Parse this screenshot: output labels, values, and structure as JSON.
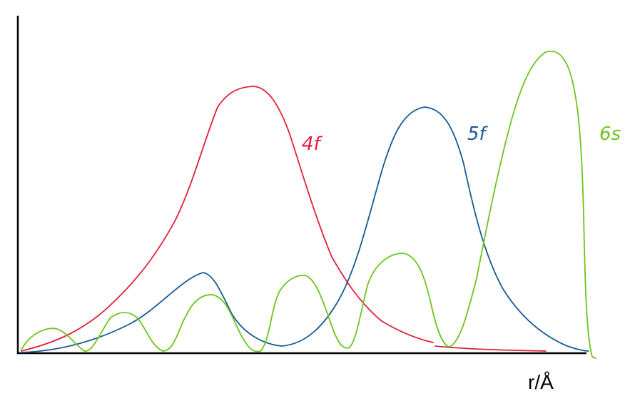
{
  "labels": {
    "curve_4f": "4f",
    "curve_5f": "5f",
    "curve_6s": "6s"
  },
  "axis": {
    "x_label": "r/Å"
  }
}
